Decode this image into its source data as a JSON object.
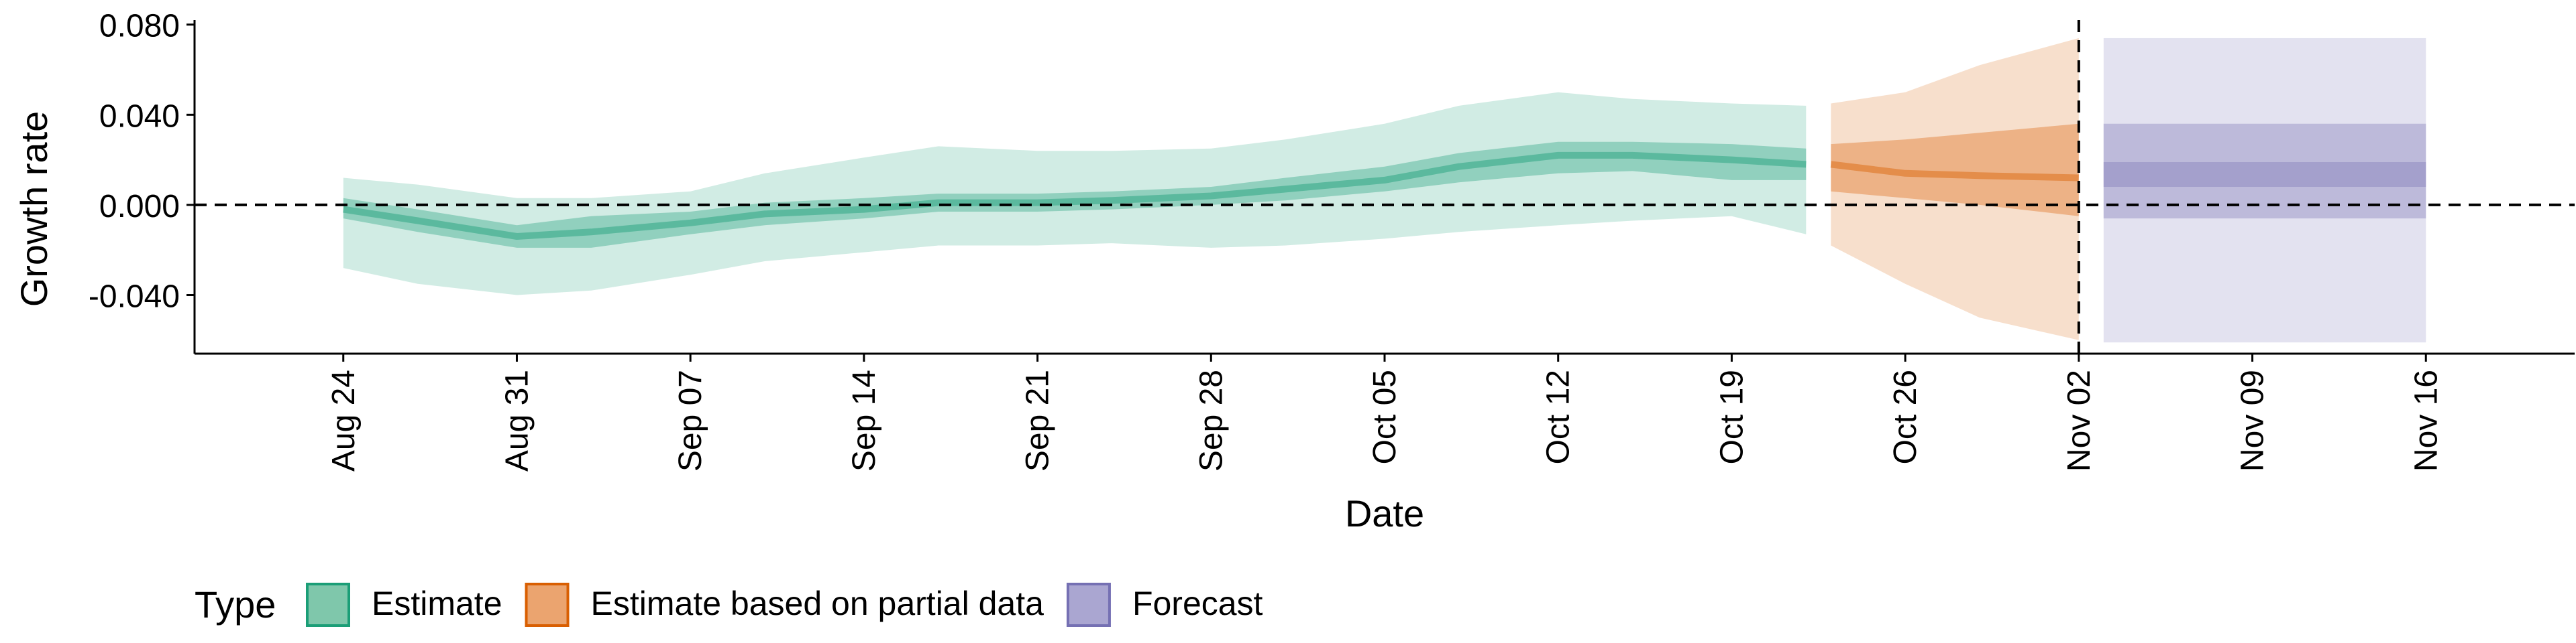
{
  "chart_data": {
    "type": "area",
    "xlabel": "Date",
    "ylabel": "Growth rate",
    "x_range": [
      "2020-08-18",
      "2020-11-22"
    ],
    "ylim": [
      -0.066,
      0.082
    ],
    "y_ticks": [
      0.08,
      0.04,
      0.0,
      -0.04
    ],
    "y_tick_labels": [
      "0.080",
      "0.040",
      "0.000",
      "-0.040"
    ],
    "x_ticks": [
      "2020-08-24",
      "2020-08-31",
      "2020-09-07",
      "2020-09-14",
      "2020-09-21",
      "2020-09-28",
      "2020-10-05",
      "2020-10-12",
      "2020-10-19",
      "2020-10-26",
      "2020-11-02",
      "2020-11-09",
      "2020-11-16"
    ],
    "x_tick_labels": [
      "Aug 24",
      "Aug 31",
      "Sep 07",
      "Sep 14",
      "Sep 21",
      "Sep 28",
      "Oct 05",
      "Oct 12",
      "Oct 19",
      "Oct 26",
      "Nov 02",
      "Nov 09",
      "Nov 16"
    ],
    "reference_lines": {
      "horizontal_y": 0.0,
      "vertical_date": "2020-11-02"
    },
    "grid": false,
    "legend": {
      "title": "Type",
      "placement": "bottom-left",
      "entries": [
        {
          "label": "Estimate",
          "fill": "#7fc7ab",
          "stroke": "#1b9e77"
        },
        {
          "label": "Estimate based on partial data",
          "fill": "#eba46f",
          "stroke": "#d95f02"
        },
        {
          "label": "Forecast",
          "fill": "#aaa6d1",
          "stroke": "#7570b3"
        }
      ]
    },
    "series": [
      {
        "type": "Estimate",
        "color": "#1b9e77",
        "x": [
          "2020-08-24",
          "2020-08-27",
          "2020-08-31",
          "2020-09-03",
          "2020-09-07",
          "2020-09-10",
          "2020-09-14",
          "2020-09-17",
          "2020-09-21",
          "2020-09-24",
          "2020-09-28",
          "2020-10-01",
          "2020-10-05",
          "2020-10-08",
          "2020-10-12",
          "2020-10-15",
          "2020-10-19",
          "2020-10-22"
        ],
        "lower_90": [
          -0.028,
          -0.035,
          -0.04,
          -0.038,
          -0.031,
          -0.025,
          -0.021,
          -0.018,
          -0.018,
          -0.017,
          -0.019,
          -0.018,
          -0.015,
          -0.012,
          -0.009,
          -0.007,
          -0.005,
          -0.013
        ],
        "upper_90": [
          0.012,
          0.009,
          0.003,
          0.003,
          0.006,
          0.014,
          0.021,
          0.026,
          0.024,
          0.024,
          0.025,
          0.029,
          0.036,
          0.044,
          0.05,
          0.047,
          0.045,
          0.044
        ],
        "lower_50": [
          -0.006,
          -0.012,
          -0.019,
          -0.019,
          -0.013,
          -0.009,
          -0.006,
          -0.003,
          -0.003,
          -0.002,
          0.0,
          0.002,
          0.006,
          0.01,
          0.014,
          0.015,
          0.011,
          0.011
        ],
        "upper_50": [
          0.003,
          -0.002,
          -0.009,
          -0.005,
          -0.003,
          0.001,
          0.003,
          0.005,
          0.005,
          0.006,
          0.008,
          0.012,
          0.017,
          0.023,
          0.028,
          0.028,
          0.027,
          0.025
        ],
        "median": [
          -0.002,
          -0.007,
          -0.014,
          -0.012,
          -0.008,
          -0.004,
          -0.002,
          0.001,
          0.001,
          0.002,
          0.004,
          0.007,
          0.011,
          0.017,
          0.022,
          0.022,
          0.02,
          0.018
        ]
      },
      {
        "type": "Estimate based on partial data",
        "color": "#d95f02",
        "x": [
          "2020-10-23",
          "2020-10-26",
          "2020-10-29",
          "2020-11-02"
        ],
        "lower_90": [
          -0.018,
          -0.035,
          -0.05,
          -0.06
        ],
        "upper_90": [
          0.045,
          0.05,
          0.062,
          0.074
        ],
        "lower_50": [
          0.006,
          0.003,
          0.0,
          -0.005
        ],
        "upper_50": [
          0.027,
          0.029,
          0.032,
          0.036
        ],
        "median": [
          0.018,
          0.014,
          0.013,
          0.012
        ]
      },
      {
        "type": "Forecast",
        "color": "#7570b3",
        "x": [
          "2020-11-03",
          "2020-11-16"
        ],
        "lower_90": [
          -0.061,
          -0.061
        ],
        "upper_90": [
          0.074,
          0.074
        ],
        "lower_50": [
          -0.006,
          -0.006
        ],
        "upper_50": [
          0.036,
          0.036
        ],
        "lower_20": [
          0.008,
          0.008
        ],
        "upper_20": [
          0.019,
          0.019
        ]
      }
    ]
  }
}
